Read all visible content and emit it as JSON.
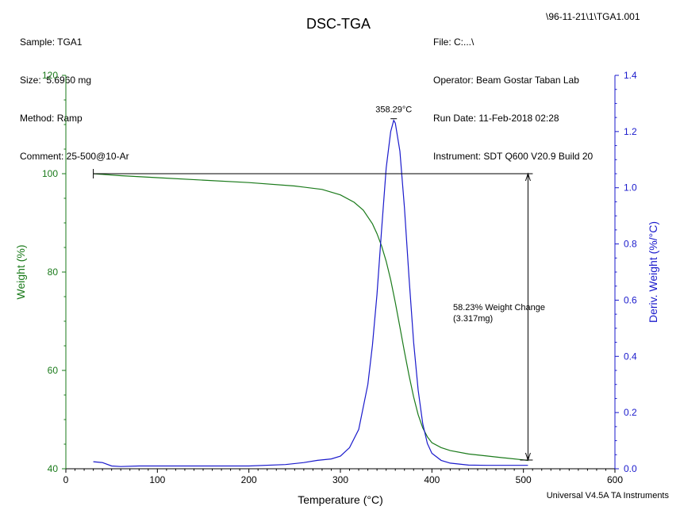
{
  "header": {
    "left": [
      "Sample: TGA1",
      "Size:  5.6960 mg",
      "Method: Ramp",
      "Comment: 25-500@10-Ar"
    ],
    "title": "DSC-TGA",
    "right_lines": [
      "File: C:...\\",
      "Operator: Beam Gostar Taban Lab",
      "Run Date: 11-Feb-2018 02:28",
      "Instrument: SDT Q600 V20.9 Build 20"
    ],
    "file_path": "\\96-11-21\\1\\TGA1.001"
  },
  "footer": "Universal V4.5A TA Instruments",
  "colors": {
    "weight": "#1a7a1a",
    "deriv": "#1a1acc",
    "axis": "#000000"
  },
  "chart_data": {
    "type": "line",
    "xlabel": "Temperature (°C)",
    "ylabel": "Weight (%)",
    "y2label": "Deriv. Weight (%/°C)",
    "xlim": [
      0,
      600
    ],
    "ylim": [
      40,
      120
    ],
    "y2lim": [
      0,
      1.4
    ],
    "xticks": [
      0,
      100,
      200,
      300,
      400,
      500,
      600
    ],
    "yticks": [
      40,
      60,
      80,
      100,
      120
    ],
    "y2ticks": [
      "0.0",
      "0.2",
      "0.4",
      "0.6",
      "0.8",
      "1.0",
      "1.2",
      "1.4"
    ],
    "grid": false,
    "series": [
      {
        "axis": "left",
        "x": [
          30,
          60,
          100,
          150,
          200,
          250,
          280,
          300,
          315,
          325,
          335,
          340,
          345,
          350,
          355,
          360,
          365,
          370,
          375,
          380,
          385,
          390,
          395,
          400,
          410,
          420,
          440,
          460,
          480,
          500,
          505
        ],
        "y": [
          100,
          99.6,
          99.2,
          98.7,
          98.2,
          97.5,
          96.8,
          95.7,
          94.2,
          92.6,
          89.8,
          87.8,
          85.3,
          82.2,
          78.4,
          73.8,
          68.8,
          63.8,
          59.0,
          54.6,
          51.0,
          48.3,
          46.5,
          45.3,
          44.3,
          43.7,
          43.0,
          42.6,
          42.2,
          41.8,
          41.7
        ]
      },
      {
        "axis": "right",
        "x": [
          30,
          40,
          50,
          60,
          80,
          100,
          150,
          200,
          240,
          260,
          275,
          290,
          300,
          310,
          320,
          330,
          335,
          340,
          345,
          350,
          355,
          358.29,
          360,
          365,
          370,
          375,
          380,
          385,
          390,
          395,
          400,
          410,
          420,
          440,
          460,
          480,
          505
        ],
        "y": [
          0.025,
          0.022,
          0.01,
          0.008,
          0.01,
          0.01,
          0.01,
          0.01,
          0.015,
          0.022,
          0.03,
          0.035,
          0.045,
          0.075,
          0.14,
          0.3,
          0.44,
          0.62,
          0.85,
          1.07,
          1.2,
          1.24,
          1.23,
          1.13,
          0.93,
          0.68,
          0.45,
          0.28,
          0.16,
          0.09,
          0.055,
          0.03,
          0.02,
          0.013,
          0.012,
          0.012,
          0.012
        ]
      }
    ],
    "annotations": {
      "peak_label": "358.29°C",
      "peak_x": 358.29,
      "weight_change": "58.23% Weight Change",
      "weight_change_mass": "(3.317mg)",
      "step_x_start": 30,
      "step_x_end": 505,
      "step_y_top": 100,
      "step_y_bottom": 41.77
    }
  }
}
